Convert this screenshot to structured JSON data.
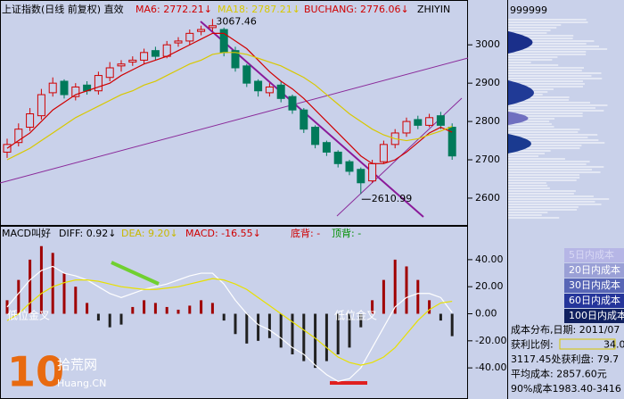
{
  "chart_data": [
    {
      "type": "candlestick",
      "title": "上证指数(日线 前复权) 直效",
      "open": [
        2720,
        2745,
        2785,
        2815,
        2875,
        2905,
        2865,
        2895,
        2880,
        2915,
        2945,
        2955,
        2960,
        2985,
        2970,
        3005,
        3010,
        3035,
        3045,
        3040,
        2985,
        2945,
        2905,
        2875,
        2895,
        2865,
        2830,
        2785,
        2745,
        2720,
        2695,
        2675,
        2645,
        2695,
        2740,
        2770,
        2805,
        2790,
        2815,
        2785
      ],
      "high": [
        2755,
        2795,
        2835,
        2885,
        2915,
        2910,
        2900,
        2905,
        2930,
        2955,
        2960,
        2970,
        2990,
        2995,
        3010,
        3020,
        3040,
        3050,
        3067.46,
        3045,
        2995,
        2950,
        2910,
        2900,
        2905,
        2870,
        2835,
        2790,
        2750,
        2725,
        2700,
        2680,
        2700,
        2750,
        2780,
        2810,
        2815,
        2820,
        2825,
        2795
      ],
      "low": [
        2705,
        2735,
        2775,
        2805,
        2865,
        2860,
        2855,
        2870,
        2870,
        2905,
        2930,
        2945,
        2950,
        2960,
        2965,
        2995,
        3000,
        3025,
        3035,
        2970,
        2930,
        2890,
        2865,
        2865,
        2850,
        2820,
        2770,
        2730,
        2710,
        2680,
        2660,
        2610.99,
        2640,
        2690,
        2730,
        2760,
        2780,
        2785,
        2780,
        2700
      ],
      "close": [
        2740,
        2780,
        2820,
        2870,
        2900,
        2870,
        2890,
        2880,
        2920,
        2940,
        2950,
        2960,
        2980,
        2970,
        3000,
        3010,
        3030,
        3040,
        3050,
        2980,
        2940,
        2900,
        2880,
        2890,
        2860,
        2830,
        2780,
        2740,
        2720,
        2690,
        2670,
        2640,
        2690,
        2740,
        2770,
        2800,
        2790,
        2810,
        2790,
        2710
      ],
      "up_color": "#d00000",
      "down_color": "#007a5a",
      "series": [
        {
          "legend": "MA6: 2772.21↓",
          "color": "#d00000",
          "values": [
            2730,
            2750,
            2770,
            2800,
            2830,
            2850,
            2870,
            2880,
            2890,
            2900,
            2920,
            2935,
            2950,
            2960,
            2970,
            2985,
            3000,
            3015,
            3030,
            3030,
            3010,
            2990,
            2960,
            2930,
            2905,
            2885,
            2860,
            2830,
            2800,
            2770,
            2740,
            2710,
            2690,
            2690,
            2700,
            2720,
            2745,
            2770,
            2785,
            2772.21
          ]
        },
        {
          "legend": "MA18: 2787.21↓",
          "color": "#d8c800",
          "values": [
            2700,
            2715,
            2730,
            2750,
            2770,
            2790,
            2810,
            2825,
            2840,
            2855,
            2870,
            2880,
            2895,
            2905,
            2920,
            2935,
            2950,
            2960,
            2975,
            2980,
            2980,
            2975,
            2965,
            2955,
            2945,
            2930,
            2915,
            2895,
            2870,
            2845,
            2820,
            2800,
            2780,
            2765,
            2755,
            2750,
            2755,
            2765,
            2775,
            2787.21
          ]
        }
      ],
      "indicators": [
        {
          "text": "BUCHANG: 2776.06↓",
          "color": "#d00000"
        },
        {
          "text": "ZHIYIN",
          "color": "#000000"
        }
      ],
      "ylim": [
        2530,
        3117
      ],
      "yticks": [
        3000,
        2900,
        2800,
        2700,
        2600
      ]
    },
    {
      "type": "macd",
      "title": "MACD叫好",
      "values": [
        10,
        25,
        40,
        50,
        45,
        30,
        20,
        8,
        -5,
        -10,
        -8,
        5,
        10,
        8,
        5,
        3,
        6,
        10,
        8,
        -5,
        -15,
        -22,
        -20,
        -18,
        -25,
        -30,
        -35,
        -40,
        -35,
        -30,
        -25,
        -10,
        10,
        25,
        40,
        35,
        25,
        10,
        -5,
        -16.55
      ],
      "legend": "MACD: -16.55↓",
      "legend_color": "#d00000",
      "up_color": "#a00000",
      "down_color": "#202020",
      "series": [
        {
          "legend": "DIFF: 0.92↓",
          "color": "#ffffff",
          "legend_color": "#000000",
          "values": [
            5,
            15,
            25,
            32,
            35,
            30,
            28,
            25,
            20,
            15,
            12,
            15,
            18,
            20,
            22,
            25,
            28,
            30,
            30,
            22,
            10,
            0,
            -8,
            -12,
            -18,
            -25,
            -30,
            -38,
            -45,
            -50,
            -48,
            -40,
            -25,
            -10,
            5,
            12,
            15,
            15,
            12,
            0.92
          ]
        },
        {
          "legend": "DEA: 9.20↓",
          "color": "#e8e000",
          "legend_color": "#c8b800",
          "values": [
            -5,
            0,
            8,
            15,
            20,
            23,
            25,
            25,
            24,
            22,
            20,
            19,
            18,
            18,
            19,
            20,
            22,
            24,
            26,
            25,
            22,
            18,
            12,
            6,
            0,
            -6,
            -12,
            -18,
            -25,
            -32,
            -36,
            -38,
            -36,
            -32,
            -25,
            -15,
            -5,
            3,
            8,
            9.2
          ]
        }
      ],
      "indicators": [
        {
          "text": "底背: -",
          "color": "#d00000"
        },
        {
          "text": "顶背: -",
          "color": "#009000"
        }
      ],
      "annotations": [
        "低位金叉",
        "低位金叉"
      ],
      "ylim": [
        -63,
        65
      ],
      "yticks": [
        {
          "value": 40,
          "label": "40.00"
        },
        {
          "value": 20,
          "label": "20.00"
        },
        {
          "value": 0,
          "label": "0.00"
        },
        {
          "value": -20,
          "label": "-20.00"
        },
        {
          "value": -40,
          "label": "-40.00"
        }
      ]
    }
  ],
  "chip_panel": {
    "code": "999999",
    "legend": [
      "5日内成本",
      "20日内成本",
      "30日内成本",
      "60日内成本",
      "100日内成本"
    ],
    "lines": [
      "成本分布,日期: 2011/07",
      "获利比例:",
      "3117.45处获利盘: 79.7",
      "平均成本: 2857.60元",
      "90%成本1983.40-3416"
    ],
    "ratio": "34.0"
  },
  "watermark": {
    "number": "10",
    "name": "拾荒网",
    "site": "Huang.CN"
  }
}
